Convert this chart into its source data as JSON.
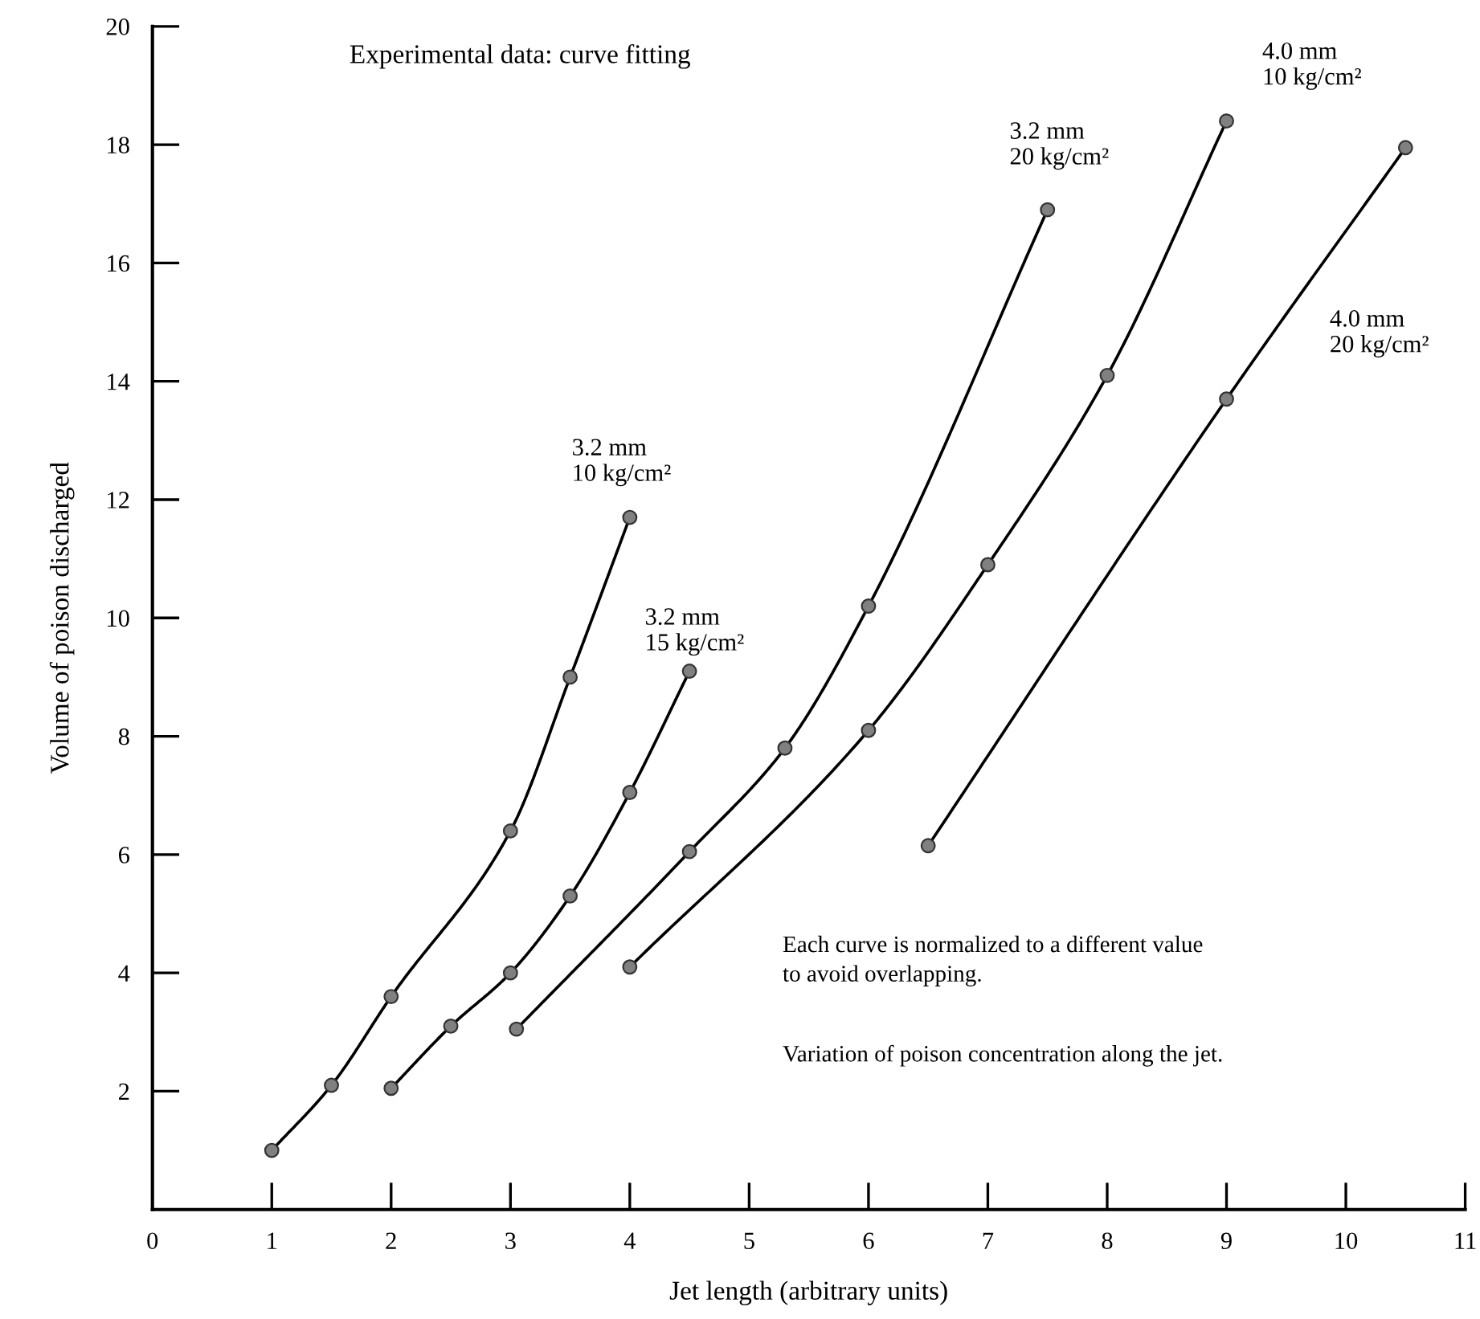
{
  "chart_data": {
    "type": "line",
    "title": "Experimental data: curve fitting",
    "xlabel": "Jet length (arbitrary units)",
    "ylabel": "Volume of poison discharged",
    "annotations": [
      "Each curve is normalized to a different value\nto avoid overlapping.",
      "Variation of poison concentration along the jet."
    ],
    "xlim": [
      0,
      11
    ],
    "ylim": [
      0,
      20
    ],
    "xticks": [
      0,
      1,
      2,
      3,
      4,
      5,
      6,
      7,
      8,
      9,
      10,
      11
    ],
    "yticks": [
      2,
      4,
      6,
      8,
      10,
      12,
      14,
      16,
      18,
      20
    ],
    "grid": false,
    "legend": false,
    "marker": "circle",
    "line_style": "solid",
    "series": [
      {
        "name": "3.2 mm\n10 kg/cm²",
        "color": "#000000",
        "x": [
          1,
          1.5,
          2,
          3,
          3.5,
          4
        ],
        "values": [
          1,
          2.1,
          3.6,
          6.4,
          9,
          11.7
        ]
      },
      {
        "name": "3.2 mm\n15 kg/cm²",
        "color": "#000000",
        "x": [
          2,
          2.5,
          3,
          3.5,
          4,
          4.5
        ],
        "values": [
          2.05,
          3.1,
          4,
          5.3,
          7.05,
          9.1
        ]
      },
      {
        "name": "3.2 mm\n20 kg/cm²",
        "color": "#000000",
        "x": [
          3.05,
          4.5,
          5.3,
          6,
          7.5
        ],
        "values": [
          3.05,
          6.05,
          7.8,
          10.2,
          16.9
        ]
      },
      {
        "name": "4.0 mm\n10 kg/cm²",
        "color": "#000000",
        "x": [
          4,
          6,
          7,
          8,
          9
        ],
        "values": [
          4.1,
          8.1,
          10.9,
          14.1,
          18.4
        ]
      },
      {
        "name": "4.0 mm\n20 kg/cm²",
        "color": "#000000",
        "x": [
          6.5,
          9,
          10.5
        ],
        "values": [
          6.15,
          13.7,
          17.95
        ]
      }
    ]
  }
}
